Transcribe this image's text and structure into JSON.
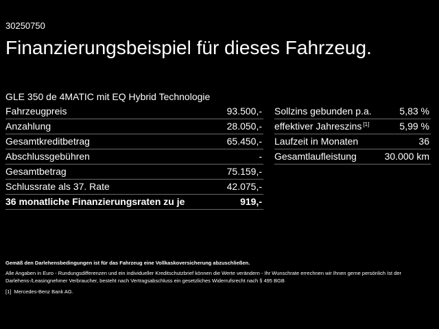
{
  "code": "30250750",
  "title": "Finanzierungsbeispiel für dieses Fahrzeug.",
  "subtitle": "GLE 350 de 4MATIC mit EQ Hybrid Technologie",
  "left_table": [
    {
      "label": "Fahrzeugpreis",
      "value": "93.500,-",
      "bold": false
    },
    {
      "label": "Anzahlung",
      "value": "28.050,-",
      "bold": false
    },
    {
      "label": "Gesamtkreditbetrag",
      "value": "65.450,-",
      "bold": false
    },
    {
      "label": "Abschlussgebühren",
      "value": "-",
      "bold": false
    },
    {
      "label": "Gesamtbetrag",
      "value": "75.159,-",
      "bold": false
    },
    {
      "label": "Schlussrate als 37. Rate",
      "value": "42.075,-",
      "bold": false
    },
    {
      "label": "36 monatliche Finanzierungsraten zu je",
      "value": "919,-",
      "bold": true
    }
  ],
  "right_table": [
    {
      "label": "Sollzins gebunden p.a.",
      "footnote": "",
      "value": "5,83 %"
    },
    {
      "label": "effektiver Jahreszins",
      "footnote": "[1]",
      "value": "5,99 %"
    },
    {
      "label": "Laufzeit in Monaten",
      "footnote": "",
      "value": "36"
    },
    {
      "label": "Gesamtlaufleistung",
      "footnote": "",
      "value": "30.000 km"
    }
  ],
  "notes": {
    "bold_line": "Gemäß den Darlehensbedingungen ist für das Fahrzeug eine Vollkaskoversicherung abzuschließen.",
    "text_line": "Alle Angaben in Euro - Rundungsdifferenzen und ein individueller Kreditschutzbrief können die Werte verändern - Ihr Wunschrate errechnen wir Ihnen gerne persönlich Ist der Darlehens-/Leasingnehmer Verbraucher, besteht nach Vertragsabschluss ein gesetzliches Widerrufsrecht nach § 495 BGB",
    "footnote_marker": "[1]",
    "footnote_text": "Mercedes-Benz Bank AG."
  }
}
